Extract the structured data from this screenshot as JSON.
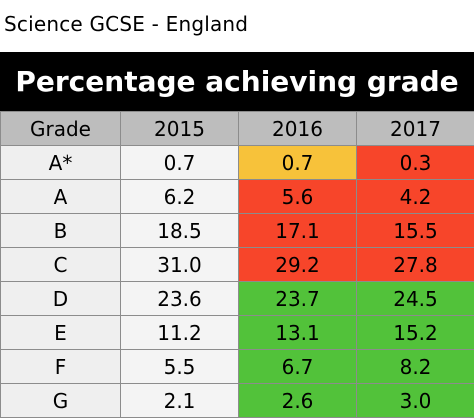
{
  "header": {
    "subtitle": "Science GCSE - England",
    "title": "Percentage achieving grade"
  },
  "colors": {
    "title_bg": "#000000",
    "header_bg": "#bdbdbd",
    "neutral_bg": "#f4f4f4",
    "grade_bg": "#efefef",
    "amber": "#f7c23a",
    "red": "#f7452a",
    "green": "#52c23a"
  },
  "chart_data": {
    "type": "table",
    "title": "Percentage achieving grade",
    "subtitle": "Science GCSE - England",
    "columns": [
      "Grade",
      "2015",
      "2016",
      "2017"
    ],
    "rows": [
      {
        "grade": "A*",
        "values": [
          "0.7",
          "0.7",
          "0.3"
        ],
        "status": [
          "none",
          "amber",
          "red"
        ]
      },
      {
        "grade": "A",
        "values": [
          "6.2",
          "5.6",
          "4.2"
        ],
        "status": [
          "none",
          "red",
          "red"
        ]
      },
      {
        "grade": "B",
        "values": [
          "18.5",
          "17.1",
          "15.5"
        ],
        "status": [
          "none",
          "red",
          "red"
        ]
      },
      {
        "grade": "C",
        "values": [
          "31.0",
          "29.2",
          "27.8"
        ],
        "status": [
          "none",
          "red",
          "red"
        ]
      },
      {
        "grade": "D",
        "values": [
          "23.6",
          "23.7",
          "24.5"
        ],
        "status": [
          "none",
          "green",
          "green"
        ]
      },
      {
        "grade": "E",
        "values": [
          "11.2",
          "13.1",
          "15.2"
        ],
        "status": [
          "none",
          "green",
          "green"
        ]
      },
      {
        "grade": "F",
        "values": [
          "5.5",
          "6.7",
          "8.2"
        ],
        "status": [
          "none",
          "green",
          "green"
        ]
      },
      {
        "grade": "G",
        "values": [
          "2.1",
          "2.6",
          "3.0"
        ],
        "status": [
          "none",
          "green",
          "green"
        ]
      }
    ]
  }
}
